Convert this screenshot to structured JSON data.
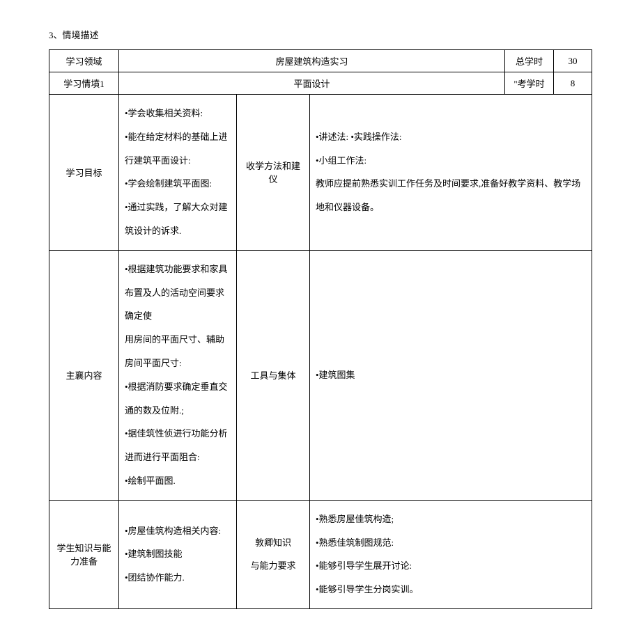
{
  "section_title": "3、情境描述",
  "table": {
    "row1": {
      "c1": "学习领域",
      "c2": "房屋建筑构造实习",
      "c3": "总学时",
      "c4": "30"
    },
    "row2": {
      "c1": "学习情墳1",
      "c2": "平面设计",
      "c3": "\"考学时",
      "c4": "8"
    },
    "row3": {
      "c1": "学习目标",
      "c2": "•学会收集相关资料:\n•能在给定材料的基础上进行建筑平面设计:\n•学会绘制建筑平面图:\n•通过实践，了解大众对建筑设计的诉求.",
      "c3": "收学方法和建仪",
      "c4": "•讲述法:  •实践操作法:\n•小组工作法:\n        教师应提前熟悉实训工作任务及时间要求,准备好教学资料、教学场地和仪器设备。"
    },
    "row4": {
      "c1": "主襄内容",
      "c2": "•根据建筑功能要求和家具布置及人的活动空间要求确定使\n用房间的平面尺寸、辅助房间平面尺寸:\n•根据消防要求确定垂直交通的数及位附.;\n•据佳筑性侦进行功能分析进而进行平面阻合:\n•绘制平面图.",
      "c3": "工具与集体",
      "c4": "•建筑图集"
    },
    "row5": {
      "c1": "学生知识与能力准备",
      "c2": "•房屋佳筑构造相关内容:\n•建筑制图技能\n•团结协作能力.",
      "c3": "敦卿知识\n与能力要求",
      "c4": "•熟悉房屋佳筑构造;\n•熟悉佳筑制图规范:\n•能够引导学生展开讨论:\n•能够引导学生分岗实训。"
    }
  }
}
